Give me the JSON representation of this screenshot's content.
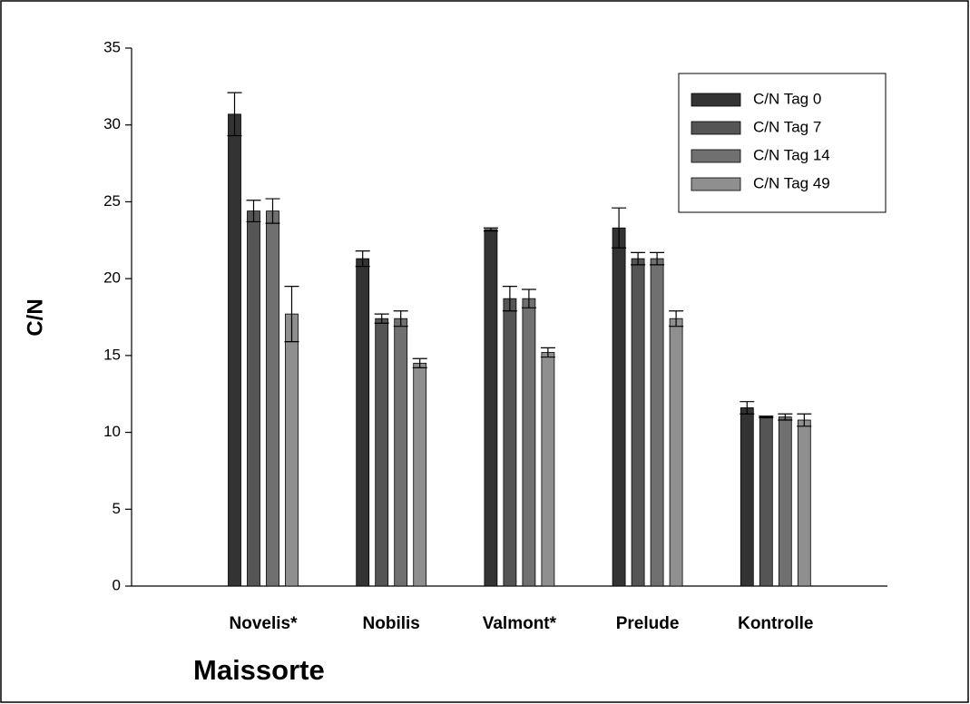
{
  "chart_data": {
    "type": "bar",
    "x_label": "Maissorte",
    "y_label": "C/N",
    "categories": [
      "Novelis*",
      "Nobilis",
      "Valmont*",
      "Prelude",
      "Kontrolle"
    ],
    "series": [
      {
        "name": "C/N Tag 0",
        "color": "#333333",
        "values": [
          30.7,
          21.3,
          23.2,
          23.3,
          11.6
        ],
        "errors": [
          1.4,
          0.5,
          0.1,
          1.3,
          0.4
        ]
      },
      {
        "name": "C/N Tag 7",
        "color": "#555555",
        "values": [
          24.4,
          17.4,
          18.7,
          21.3,
          11.0
        ],
        "errors": [
          0.7,
          0.3,
          0.8,
          0.4,
          0.05
        ]
      },
      {
        "name": "C/N Tag 14",
        "color": "#707070",
        "values": [
          24.4,
          17.4,
          18.7,
          21.3,
          11.0
        ],
        "errors": [
          0.8,
          0.5,
          0.6,
          0.4,
          0.2
        ]
      },
      {
        "name": "C/N Tag 49",
        "color": "#8f8f8f",
        "values": [
          17.7,
          14.5,
          15.2,
          17.4,
          10.8
        ],
        "errors": [
          1.8,
          0.3,
          0.3,
          0.5,
          0.4
        ]
      }
    ],
    "ylim": [
      0,
      35
    ],
    "yticks": [
      0,
      5,
      10,
      15,
      20,
      25,
      30,
      35
    ],
    "legend": "upper right"
  }
}
